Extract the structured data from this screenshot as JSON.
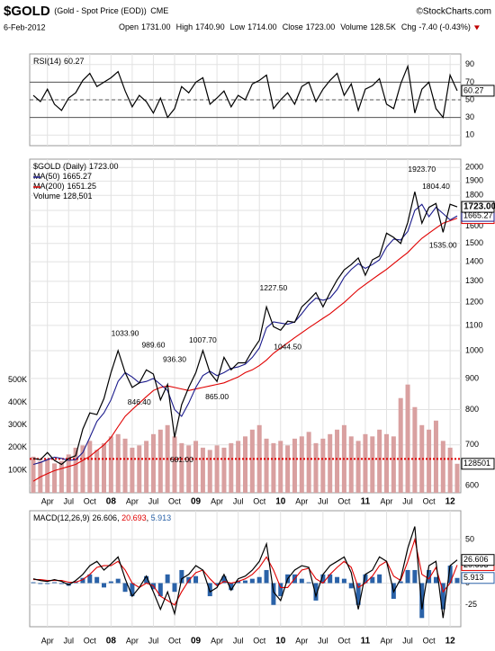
{
  "header": {
    "symbol": "$GOLD",
    "name": "(Gold - Spot Price (EOD))",
    "exchange": "CME",
    "credit": "©StockCharts.com",
    "date": "6-Feb-2012",
    "quote": [
      {
        "label": "Open",
        "value": "1731.00"
      },
      {
        "label": "High",
        "value": "1740.90"
      },
      {
        "label": "Low",
        "value": "1714.00"
      },
      {
        "label": "Close",
        "value": "1723.00"
      },
      {
        "label": "Volume",
        "value": "128.5K"
      },
      {
        "label": "Chg",
        "value": "-7.40 (-0.43%)"
      }
    ]
  },
  "chart_data": [
    {
      "type": "line",
      "ylim": [
        -2,
        102
      ],
      "yticks": [
        10,
        30,
        50,
        70,
        90
      ],
      "levels": [
        30,
        70
      ],
      "midline": 50,
      "series": [
        {
          "name": "RSI(14)",
          "color": "#000000",
          "values": [
            55,
            48,
            62,
            45,
            38,
            52,
            58,
            72,
            80,
            65,
            70,
            75,
            82,
            60,
            42,
            55,
            48,
            35,
            52,
            30,
            40,
            65,
            58,
            70,
            75,
            45,
            52,
            60,
            42,
            55,
            50,
            68,
            72,
            78,
            40,
            50,
            58,
            45,
            65,
            70,
            48,
            62,
            72,
            80,
            55,
            68,
            38,
            62,
            66,
            74,
            45,
            40,
            68,
            88,
            35,
            62,
            70,
            40,
            30,
            78,
            60.27
          ]
        }
      ]
    },
    {
      "type": "line",
      "log": true,
      "ylim": [
        584,
        2064
      ],
      "yticks": [
        600,
        700,
        800,
        900,
        1000,
        1100,
        1200,
        1300,
        1400,
        1500,
        1600,
        1700,
        1800,
        1900,
        2000
      ],
      "y2lim": [
        0,
        1480000
      ],
      "y2ticks": [
        {
          "value": 100000,
          "label": "100K"
        },
        {
          "value": 200000,
          "label": "200K"
        },
        {
          "value": 300000,
          "label": "300K"
        },
        {
          "value": 400000,
          "label": "400K"
        },
        {
          "value": 500000,
          "label": "500K"
        }
      ],
      "categories": [
        null,
        null,
        "Apr",
        null,
        null,
        "Jul",
        null,
        null,
        "Oct",
        null,
        null,
        "08",
        null,
        null,
        "Apr",
        null,
        null,
        "Jul",
        null,
        null,
        "Oct",
        null,
        null,
        "09",
        null,
        null,
        "Apr",
        null,
        null,
        "Jul",
        null,
        null,
        "Oct",
        null,
        null,
        "10",
        null,
        null,
        "Apr",
        null,
        null,
        "Jul",
        null,
        null,
        "Oct",
        null,
        null,
        "11",
        null,
        null,
        "Apr",
        null,
        null,
        "Jul",
        null,
        null,
        "Oct",
        null,
        null,
        "12",
        null
      ],
      "series": [
        {
          "name": "$GOLD (Daily)",
          "color": "#000000",
          "last_label": "1723.00",
          "values": [
            665,
            662,
            680,
            660,
            650,
            665,
            672,
            743,
            790,
            785,
            834,
            920,
            1000,
            920,
            870,
            885,
            930,
            915,
            830,
            880,
            720,
            815,
            870,
            920,
            1000,
            920,
            890,
            975,
            930,
            955,
            955,
            1000,
            1040,
            1180,
            1095,
            1080,
            1118,
            1113,
            1180,
            1210,
            1245,
            1180,
            1245,
            1307,
            1357,
            1385,
            1420,
            1330,
            1410,
            1430,
            1560,
            1535,
            1500,
            1625,
            1825,
            1620,
            1720,
            1745,
            1565,
            1740,
            1723
          ]
        },
        {
          "name": "MA(50)",
          "color": "#1a1a8c",
          "values": [
            650,
            655,
            662,
            668,
            665,
            660,
            662,
            680,
            720,
            765,
            790,
            830,
            890,
            920,
            905,
            885,
            890,
            900,
            880,
            860,
            800,
            780,
            820,
            870,
            910,
            925,
            910,
            920,
            935,
            940,
            950,
            975,
            1010,
            1090,
            1115,
            1110,
            1105,
            1115,
            1150,
            1190,
            1220,
            1210,
            1220,
            1260,
            1320,
            1360,
            1390,
            1365,
            1385,
            1410,
            1480,
            1525,
            1520,
            1570,
            1700,
            1740,
            1660,
            1720,
            1680,
            1640,
            1665.27
          ]
        },
        {
          "name": "MA(200)",
          "color": "#e00000",
          "values": [
            610,
            620,
            628,
            635,
            640,
            645,
            650,
            660,
            670,
            685,
            700,
            720,
            750,
            780,
            800,
            820,
            840,
            860,
            870,
            875,
            870,
            865,
            860,
            865,
            870,
            875,
            880,
            885,
            895,
            905,
            920,
            930,
            945,
            965,
            990,
            1010,
            1030,
            1050,
            1070,
            1090,
            1110,
            1130,
            1150,
            1175,
            1200,
            1230,
            1260,
            1285,
            1310,
            1335,
            1360,
            1390,
            1420,
            1450,
            1490,
            1530,
            1560,
            1590,
            1620,
            1635,
            1651.25
          ]
        },
        {
          "name": "Volume",
          "axis": "y2",
          "color": "#d9a0a0",
          "last_label": "128,501",
          "values": [
            160000,
            140000,
            150000,
            130000,
            140000,
            170000,
            200000,
            210000,
            230000,
            190000,
            220000,
            250000,
            260000,
            240000,
            200000,
            210000,
            230000,
            260000,
            280000,
            300000,
            250000,
            220000,
            210000,
            230000,
            200000,
            190000,
            210000,
            200000,
            220000,
            230000,
            250000,
            280000,
            300000,
            240000,
            220000,
            230000,
            210000,
            240000,
            250000,
            270000,
            220000,
            240000,
            260000,
            280000,
            300000,
            250000,
            230000,
            260000,
            250000,
            280000,
            260000,
            250000,
            420000,
            480000,
            380000,
            300000,
            280000,
            320000,
            230000,
            200000,
            128501
          ]
        }
      ],
      "volume_average": 150000,
      "annotations": [
        {
          "label": "1033.90",
          "value": 1033.9,
          "index": 13
        },
        {
          "label": "989.60",
          "value": 989.6,
          "index": 17
        },
        {
          "label": "936.30",
          "value": 936.3,
          "index": 20
        },
        {
          "label": "846.40",
          "value": 846.4,
          "index": 15
        },
        {
          "label": "681.00",
          "value": 681,
          "index": 21
        },
        {
          "label": "1007.70",
          "value": 1007.7,
          "index": 24
        },
        {
          "label": "865.00",
          "value": 865,
          "index": 26
        },
        {
          "label": "1227.50",
          "value": 1227.5,
          "index": 34
        },
        {
          "label": "1044.50",
          "value": 1044.5,
          "index": 36
        },
        {
          "label": "1923.70",
          "value": 1923.7,
          "index": 55
        },
        {
          "label": "1804.40",
          "value": 1804.4,
          "index": 57
        },
        {
          "label": "1535.00",
          "value": 1535,
          "index": 58
        }
      ]
    },
    {
      "type": "line",
      "ylim": [
        -50,
        83
      ],
      "yticks": [
        -25,
        0,
        25,
        50
      ],
      "legend_separator": ", ",
      "series": [
        {
          "name": "MACD(12,26,9)",
          "color": "#000000",
          "values": [
            5,
            3,
            2,
            4,
            2,
            -2,
            3,
            10,
            20,
            25,
            15,
            22,
            30,
            5,
            -15,
            -5,
            8,
            -10,
            -30,
            -10,
            -35,
            5,
            10,
            20,
            15,
            -10,
            -5,
            10,
            -8,
            5,
            8,
            15,
            25,
            45,
            -10,
            -20,
            5,
            15,
            20,
            18,
            -15,
            10,
            20,
            25,
            30,
            12,
            -30,
            10,
            15,
            30,
            25,
            -10,
            5,
            40,
            65,
            -30,
            20,
            25,
            -40,
            20,
            26.606
          ]
        },
        {
          "color": "#e00000",
          "values": [
            4,
            4,
            3,
            3,
            3,
            1,
            1,
            4,
            10,
            18,
            20,
            20,
            25,
            15,
            0,
            -5,
            0,
            -3,
            -15,
            -20,
            -25,
            -10,
            3,
            12,
            15,
            5,
            -3,
            2,
            0,
            2,
            5,
            10,
            18,
            30,
            15,
            -5,
            -5,
            5,
            15,
            17,
            5,
            0,
            10,
            18,
            25,
            18,
            -5,
            0,
            8,
            20,
            25,
            8,
            3,
            25,
            50,
            10,
            5,
            18,
            -10,
            0,
            20.693
          ]
        },
        {
          "color": "#2a62a8",
          "kind": "histogram",
          "values": [
            1,
            -1,
            -1,
            1,
            -1,
            -3,
            2,
            6,
            10,
            7,
            -5,
            2,
            5,
            -10,
            -15,
            0,
            8,
            -7,
            -15,
            10,
            -10,
            15,
            7,
            8,
            0,
            -15,
            -2,
            8,
            -8,
            3,
            3,
            5,
            7,
            15,
            -25,
            -15,
            10,
            10,
            5,
            1,
            -20,
            10,
            10,
            7,
            5,
            -6,
            -25,
            10,
            7,
            10,
            0,
            -18,
            2,
            15,
            15,
            -40,
            15,
            7,
            -30,
            20,
            5.913
          ]
        }
      ]
    }
  ]
}
